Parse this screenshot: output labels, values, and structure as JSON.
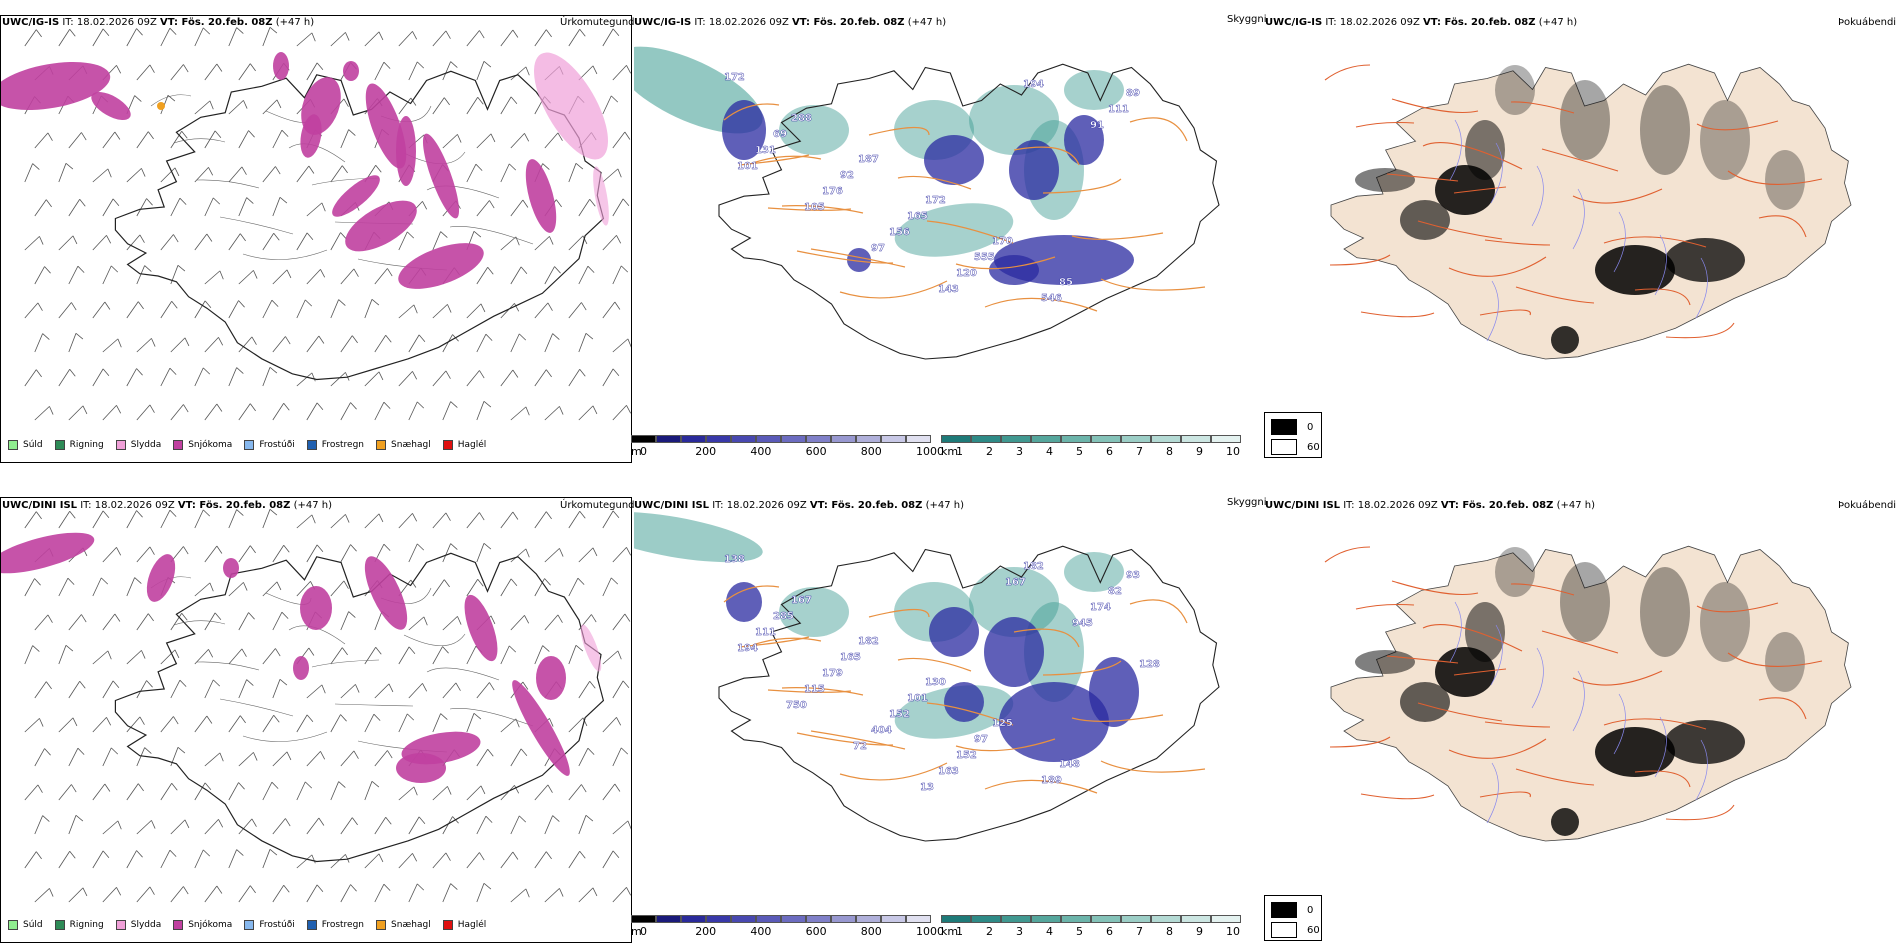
{
  "rows": [
    {
      "precip": {
        "title_model": "UWC/IG-IS",
        "title_it": " IT: 18.02.2026 09Z ",
        "title_vt_label": "VT:",
        "title_vt_value": " Fös. 20.feb. 08Z",
        "title_lead": " (+47 h)",
        "type": "Úrkomutegund"
      },
      "vis": {
        "title_model": "UWC/IG-IS",
        "title_it": " IT: 18.02.2026 09Z ",
        "title_vt_label": "VT:",
        "title_vt_value": " Fös. 20.feb. 08Z",
        "title_lead": " (+47 h)",
        "type": "Skyggni",
        "labels": [
          "172",
          "288",
          "187",
          "172",
          "170",
          "85",
          "89",
          "69",
          "92",
          "165",
          "555",
          "546",
          "111",
          "131",
          "176",
          "156",
          "120",
          "194",
          "91",
          "101",
          "105",
          "97",
          "143"
        ]
      },
      "fog": {
        "title_model": "UWC/IG-IS",
        "title_it": " IT: 18.02.2026 09Z ",
        "title_vt_label": "VT:",
        "title_vt_value": " Fös. 20.feb. 08Z",
        "title_lead": " (+47 h)",
        "type": "Þokuábendi"
      }
    },
    {
      "precip": {
        "title_model": "UWC/DINI ISL",
        "title_it": " IT: 18.02.2026 09Z ",
        "title_vt_label": "VT:",
        "title_vt_value": " Fös. 20.feb. 08Z",
        "title_lead": " (+47 h)",
        "type": "Úrkomutegund"
      },
      "vis": {
        "title_model": "UWC/DINI ISL",
        "title_it": " IT: 18.02.2026 09Z ",
        "title_vt_label": "VT:",
        "title_vt_value": " Fös. 20.feb. 08Z",
        "title_lead": " (+47 h)",
        "type": "Skyggni",
        "labels": [
          "138",
          "167",
          "182",
          "130",
          "125",
          "148",
          "93",
          "285",
          "165",
          "101",
          "97",
          "189",
          "82",
          "111",
          "179",
          "152",
          "152",
          "182",
          "174",
          "194",
          "115",
          "404",
          "163",
          "167",
          "945",
          "128",
          "750",
          "72",
          "13"
        ]
      },
      "fog": {
        "title_model": "UWC/DINI ISL",
        "title_it": " IT: 18.02.2026 09Z ",
        "title_vt_label": "VT:",
        "title_vt_value": " Fös. 20.feb. 08Z",
        "title_lead": " (+47 h)",
        "type": "Þokuábendi"
      }
    }
  ],
  "precip_legend": [
    {
      "label": "Súld",
      "color": "#90ee90"
    },
    {
      "label": "Rigning",
      "color": "#2e8b57"
    },
    {
      "label": "Slydda",
      "color": "#f0a0d8"
    },
    {
      "label": "Snjókoma",
      "color": "#c040a0"
    },
    {
      "label": "Frostúði",
      "color": "#87b8ee"
    },
    {
      "label": "Frostregn",
      "color": "#2060b0"
    },
    {
      "label": "Snæhagl",
      "color": "#f0a020"
    },
    {
      "label": "Haglél",
      "color": "#e01010"
    }
  ],
  "ceiling_bar": {
    "unit": "m",
    "ticks": [
      "0",
      "200",
      "400",
      "600",
      "800",
      "1000"
    ],
    "colors": [
      "#000000",
      "#1a1a7a",
      "#2a2a9a",
      "#3838a8",
      "#4848b0",
      "#5a5ab8",
      "#6c6cc0",
      "#8080c8",
      "#9898d0",
      "#b0b0da",
      "#c8c8e6",
      "#e0e0f0"
    ]
  },
  "vis_bar": {
    "unit": "km",
    "ticks": [
      "1",
      "2",
      "3",
      "4",
      "5",
      "6",
      "7",
      "8",
      "9",
      "10"
    ],
    "colors": [
      "#1e7a78",
      "#2e8a86",
      "#409890",
      "#55a69c",
      "#6cb4aa",
      "#84c2b8",
      "#9ccec6",
      "#b4dad4",
      "#cce6e2",
      "#e4f2f0"
    ]
  },
  "fog_legend": {
    "values": [
      "0",
      "60"
    ],
    "colors": [
      "#000000",
      "#ffffff"
    ]
  },
  "colors": {
    "snow": "#c040a0",
    "sleet": "#f0a0d8",
    "teal": "#3a9a90",
    "ceiling": "#2a2aa0",
    "land": "#f3e3d2",
    "road": "#e06030",
    "roadvis": "#e89040"
  }
}
